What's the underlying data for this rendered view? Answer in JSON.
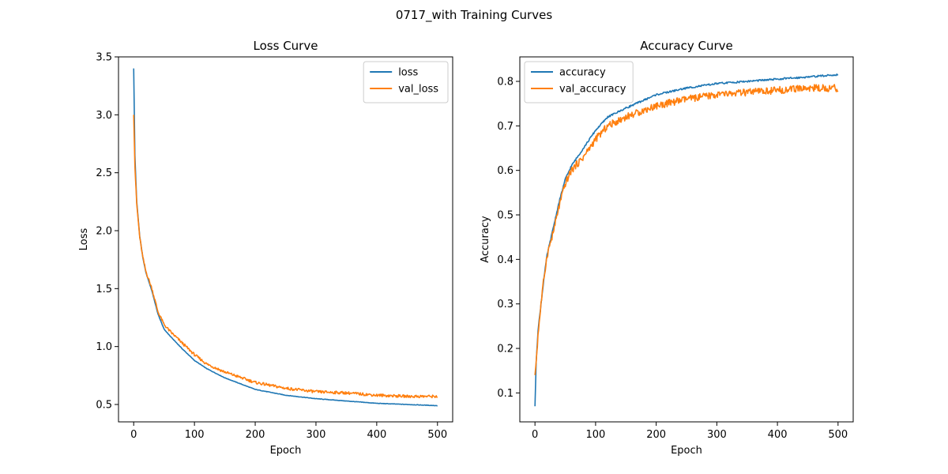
{
  "figure": {
    "suptitle": "0717_with Training Curves"
  },
  "chart_data": [
    {
      "type": "line",
      "title": "Loss Curve",
      "xlabel": "Epoch",
      "ylabel": "Loss",
      "xlim": [
        -25,
        525
      ],
      "ylim": [
        0.35,
        3.5
      ],
      "xticks": [
        0,
        100,
        200,
        300,
        400,
        500
      ],
      "yticks": [
        0.5,
        1.0,
        1.5,
        2.0,
        2.5,
        3.0,
        3.5
      ],
      "legend_position": "upper right",
      "grid": false,
      "series": [
        {
          "name": "loss",
          "color": "#1f77b4",
          "x": [
            0,
            2,
            5,
            10,
            15,
            20,
            30,
            40,
            50,
            60,
            80,
            100,
            120,
            150,
            200,
            250,
            300,
            350,
            400,
            450,
            500
          ],
          "y": [
            3.4,
            2.65,
            2.25,
            1.95,
            1.77,
            1.64,
            1.48,
            1.28,
            1.15,
            1.09,
            0.98,
            0.88,
            0.81,
            0.73,
            0.63,
            0.58,
            0.55,
            0.53,
            0.51,
            0.5,
            0.49
          ]
        },
        {
          "name": "val_loss",
          "color": "#ff7f0e",
          "x": [
            0,
            2,
            5,
            10,
            15,
            20,
            30,
            40,
            50,
            60,
            80,
            100,
            120,
            150,
            200,
            250,
            300,
            350,
            400,
            450,
            500
          ],
          "y": [
            3.0,
            2.55,
            2.23,
            1.94,
            1.77,
            1.65,
            1.5,
            1.3,
            1.19,
            1.13,
            1.03,
            0.93,
            0.85,
            0.78,
            0.69,
            0.64,
            0.61,
            0.6,
            0.58,
            0.57,
            0.57
          ]
        }
      ]
    },
    {
      "type": "line",
      "title": "Accuracy Curve",
      "xlabel": "Epoch",
      "ylabel": "Accuracy",
      "xlim": [
        -25,
        525
      ],
      "ylim": [
        0.035,
        0.855
      ],
      "xticks": [
        0,
        100,
        200,
        300,
        400,
        500
      ],
      "yticks": [
        0.1,
        0.2,
        0.3,
        0.4,
        0.5,
        0.6,
        0.7,
        0.8
      ],
      "legend_position": "upper left",
      "grid": false,
      "series": [
        {
          "name": "accuracy",
          "color": "#1f77b4",
          "x": [
            0,
            2,
            5,
            10,
            15,
            20,
            30,
            40,
            50,
            60,
            80,
            100,
            120,
            150,
            200,
            250,
            300,
            350,
            400,
            450,
            500
          ],
          "y": [
            0.07,
            0.17,
            0.24,
            0.3,
            0.36,
            0.41,
            0.47,
            0.53,
            0.58,
            0.61,
            0.65,
            0.69,
            0.72,
            0.74,
            0.77,
            0.785,
            0.795,
            0.8,
            0.805,
            0.81,
            0.815
          ]
        },
        {
          "name": "val_accuracy",
          "color": "#ff7f0e",
          "x": [
            0,
            2,
            5,
            10,
            15,
            20,
            30,
            40,
            50,
            60,
            80,
            100,
            120,
            150,
            200,
            250,
            300,
            350,
            400,
            450,
            500
          ],
          "y": [
            0.14,
            0.17,
            0.23,
            0.3,
            0.36,
            0.41,
            0.46,
            0.52,
            0.57,
            0.6,
            0.63,
            0.67,
            0.7,
            0.72,
            0.745,
            0.76,
            0.77,
            0.775,
            0.78,
            0.785,
            0.785
          ]
        }
      ]
    }
  ]
}
